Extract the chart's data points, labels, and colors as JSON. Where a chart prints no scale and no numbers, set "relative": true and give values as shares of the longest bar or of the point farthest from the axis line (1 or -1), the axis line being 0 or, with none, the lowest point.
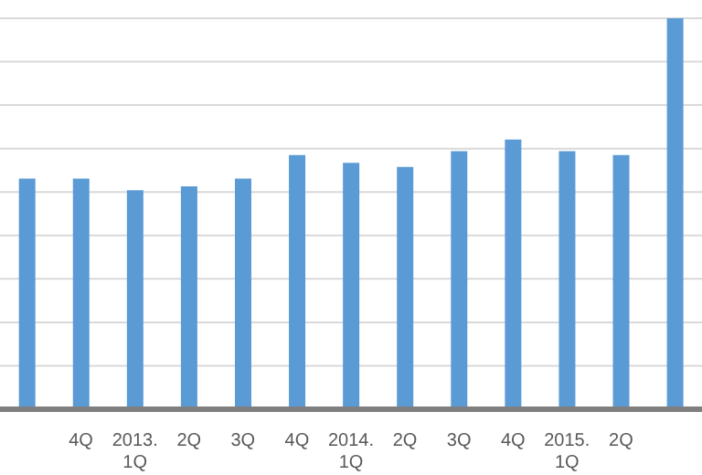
{
  "chart_data": {
    "type": "bar",
    "relative": true,
    "categories": [
      null,
      "4Q",
      "2013. 1Q",
      "2Q",
      "3Q",
      "4Q",
      "2014. 1Q",
      "2Q",
      "3Q",
      "4Q",
      "2015. 1Q",
      "2Q",
      null
    ],
    "values": [
      0.59,
      0.59,
      0.56,
      0.57,
      0.59,
      0.65,
      0.63,
      0.62,
      0.66,
      0.69,
      0.66,
      0.65,
      1
    ],
    "color": "#5b9bd5",
    "grid": "y"
  }
}
